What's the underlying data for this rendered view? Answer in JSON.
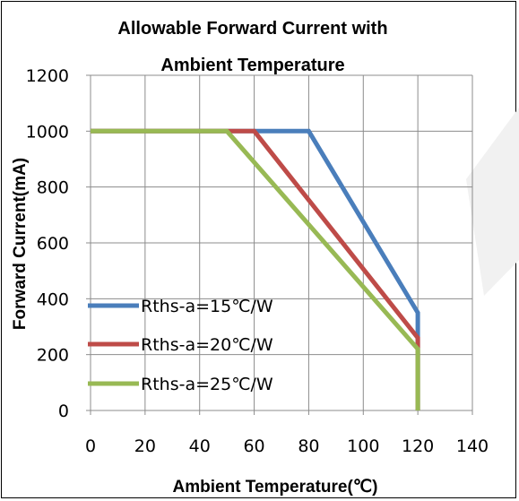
{
  "chart_data": {
    "type": "line",
    "title_lines": [
      "Allowable Forward Current with",
      "Ambient Temperature"
    ],
    "xlabel": "Ambient Temperature(℃)",
    "ylabel": "Forward Current(mA)",
    "xlim": [
      0,
      140
    ],
    "ylim": [
      0,
      1200
    ],
    "x_ticks": [
      0,
      20,
      40,
      60,
      80,
      100,
      120,
      140
    ],
    "y_ticks": [
      0,
      200,
      400,
      600,
      800,
      1000,
      1200
    ],
    "grid": true,
    "legend_position": "lower-left",
    "series": [
      {
        "name": "Rths-a=15℃/W",
        "color": "#4a7ebb",
        "points": [
          [
            0,
            1000
          ],
          [
            80,
            1000
          ],
          [
            120,
            350
          ],
          [
            120,
            0
          ]
        ]
      },
      {
        "name": "Rths-a=20℃/W",
        "color": "#be4b48",
        "points": [
          [
            0,
            1000
          ],
          [
            60,
            1000
          ],
          [
            120,
            260
          ],
          [
            120,
            0
          ]
        ]
      },
      {
        "name": "Rths-a=25℃/W",
        "color": "#98b954",
        "points": [
          [
            0,
            1000
          ],
          [
            50,
            1000
          ],
          [
            120,
            220
          ],
          [
            120,
            0
          ]
        ]
      }
    ]
  }
}
